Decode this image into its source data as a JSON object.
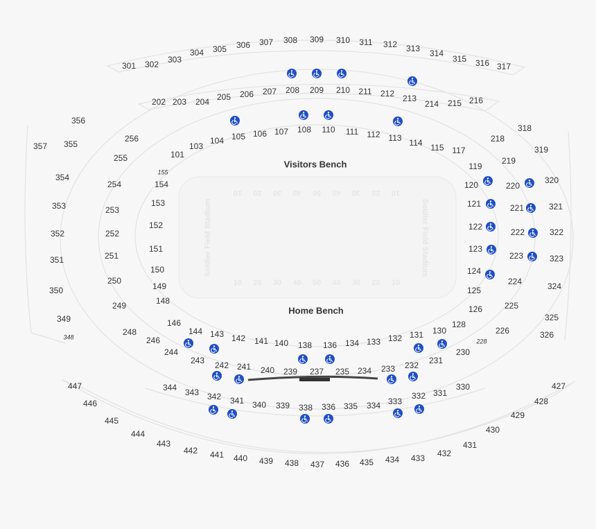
{
  "field": {
    "top_label": "Visitors Bench",
    "bottom_label": "Home Bench",
    "side_label": "Soldier Field Stadium",
    "yard_numbers": [
      "10",
      "20",
      "30",
      "40",
      "50",
      "40",
      "30",
      "20",
      "10"
    ]
  },
  "sections": [
    "301",
    "302",
    "303",
    "304",
    "305",
    "306",
    "307",
    "308",
    "309",
    "310",
    "311",
    "312",
    "313",
    "314",
    "315",
    "316",
    "317",
    "202",
    "203",
    "204",
    "205",
    "206",
    "207",
    "208",
    "209",
    "210",
    "211",
    "212",
    "213",
    "214",
    "215",
    "216",
    "101",
    "103",
    "104",
    "105",
    "106",
    "107",
    "108",
    "110",
    "111",
    "112",
    "113",
    "114",
    "115",
    "117",
    "119",
    "120",
    "121",
    "122",
    "123",
    "124",
    "125",
    "126",
    "128",
    "130",
    "131",
    "132",
    "133",
    "134",
    "136",
    "138",
    "140",
    "141",
    "142",
    "143",
    "144",
    "146",
    "148",
    "149",
    "150",
    "151",
    "152",
    "153",
    "154",
    "155",
    "218",
    "219",
    "220",
    "221",
    "222",
    "223",
    "224",
    "225",
    "226",
    "228",
    "230",
    "231",
    "232",
    "233",
    "234",
    "235",
    "237",
    "239",
    "240",
    "241",
    "242",
    "243",
    "244",
    "246",
    "248",
    "249",
    "250",
    "251",
    "252",
    "253",
    "254",
    "255",
    "256",
    "318",
    "319",
    "320",
    "321",
    "322",
    "323",
    "324",
    "325",
    "326",
    "330",
    "331",
    "332",
    "333",
    "334",
    "335",
    "336",
    "338",
    "339",
    "340",
    "341",
    "342",
    "343",
    "344",
    "348",
    "349",
    "350",
    "351",
    "352",
    "353",
    "354",
    "355",
    "356",
    "357",
    "447",
    "446",
    "445",
    "444",
    "443",
    "442",
    "441",
    "440",
    "439",
    "438",
    "437",
    "436",
    "435",
    "434",
    "433",
    "432",
    "431",
    "430",
    "429",
    "428",
    "427"
  ]
}
